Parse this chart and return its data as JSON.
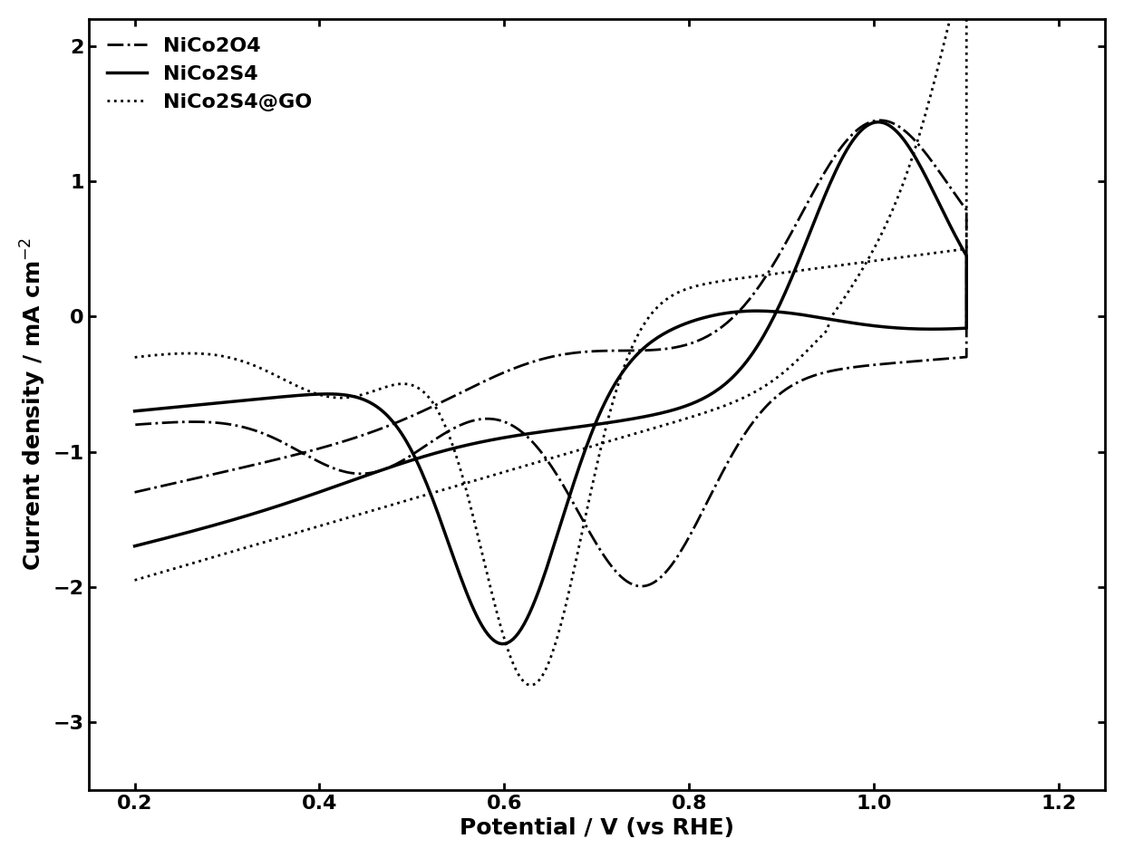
{
  "title": "",
  "xlabel": "Potential / V (vs RHE)",
  "ylabel": "Current density / mA cm⁻²",
  "xlim": [
    0.15,
    1.25
  ],
  "ylim": [
    -3.5,
    2.2
  ],
  "xticks": [
    0.2,
    0.4,
    0.6,
    0.8,
    1.0,
    1.2
  ],
  "yticks": [
    -3,
    -2,
    -1,
    0,
    1,
    2
  ],
  "background_color": "#ffffff",
  "line_color": "#000000",
  "legend_labels": [
    "NiCo2O4",
    "NiCo2S4",
    "NiCo2S4@GO"
  ],
  "legend_linestyles": [
    "-.",
    "-",
    ":"
  ],
  "legend_linewidths": [
    2.0,
    2.5,
    2.0
  ],
  "figsize": [
    12.4,
    9.47
  ],
  "dpi": 100,
  "label_fontsize": 18,
  "tick_fontsize": 16,
  "legend_fontsize": 16
}
